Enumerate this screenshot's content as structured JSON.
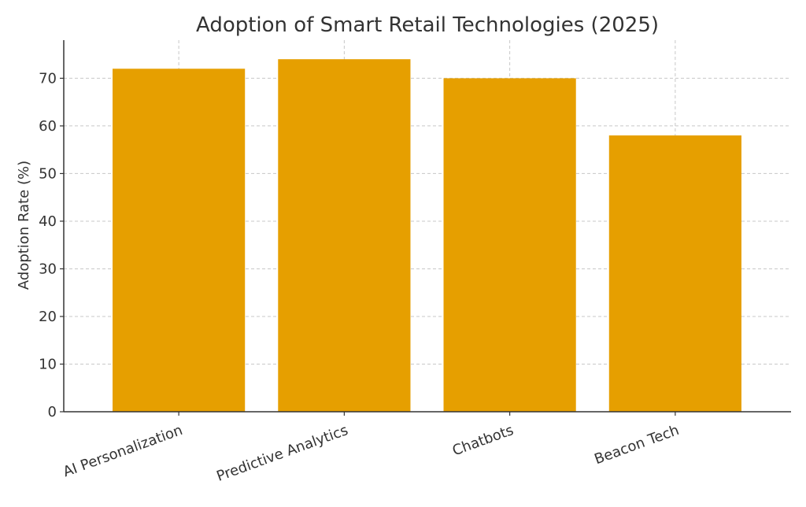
{
  "chart_data": {
    "type": "bar",
    "title": "Adoption of Smart Retail Technologies (2025)",
    "xlabel": "",
    "ylabel": "Adoption Rate (%)",
    "categories": [
      "AI Personalization",
      "Predictive Analytics",
      "Chatbots",
      "Beacon Tech"
    ],
    "values": [
      72,
      74,
      70,
      58
    ],
    "ylim": [
      0,
      78
    ],
    "yticks": [
      0,
      10,
      20,
      30,
      40,
      50,
      60,
      70
    ],
    "bar_color": "#E69F00",
    "grid": true,
    "legend": "none"
  }
}
